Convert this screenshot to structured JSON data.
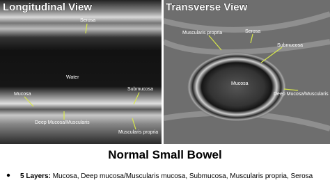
{
  "panels": [
    {
      "title": "Longitudinal View",
      "labels": [
        "Serosa",
        "Water",
        "Mucosa",
        "Submucosa",
        "Deep Mucosa/Muscularis",
        "Muscularis propria"
      ]
    },
    {
      "title": "Transverse View",
      "labels": [
        "Muscularis propria",
        "Serosa",
        "Submucosa",
        "Mucosa",
        "Deep Mucosa/Muscularis"
      ]
    }
  ],
  "caption": {
    "title": "Normal Small Bowel",
    "bullet_lead": "5 Layers:",
    "bullet_text": "Mucosa, Deep mucosa/Muscularis mucosa, Submucosa, Muscularis propria, Serosa"
  }
}
